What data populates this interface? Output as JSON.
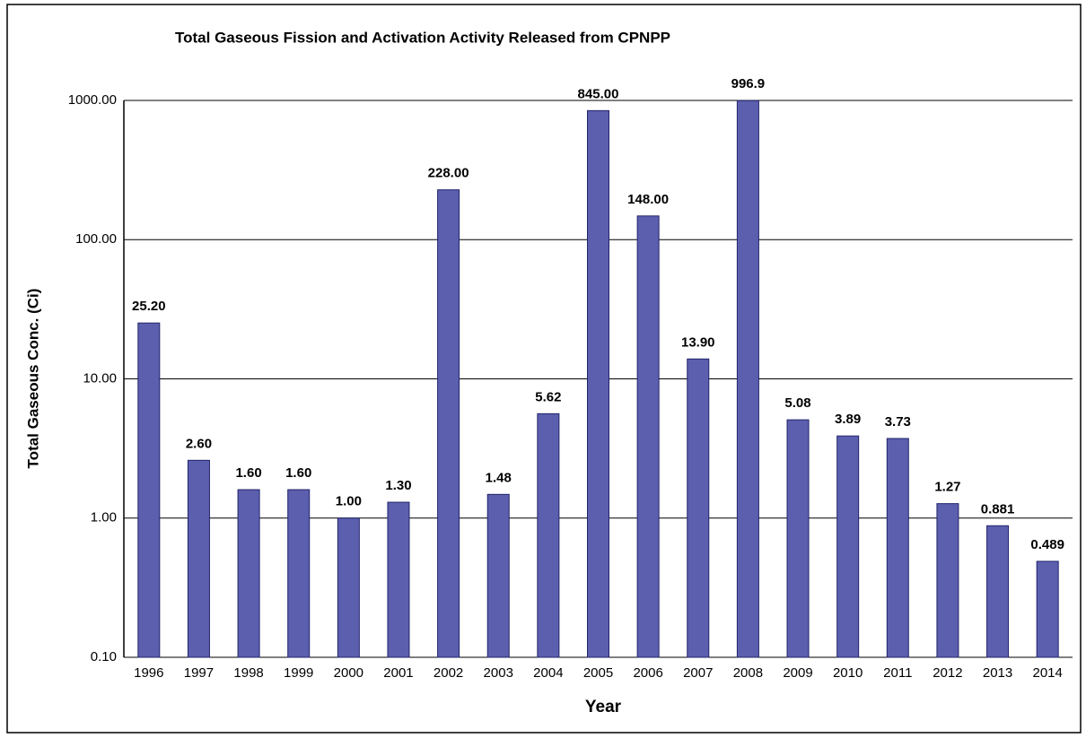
{
  "chart_data": {
    "type": "bar",
    "title": "Total Gaseous Fission and Activation Activity Released from CPNPP",
    "x_label": "Year",
    "y_label": "Total Gaseous Conc. (Ci)",
    "categories": [
      "1996",
      "1997",
      "1998",
      "1999",
      "2000",
      "2001",
      "2002",
      "2003",
      "2004",
      "2005",
      "2006",
      "2007",
      "2008",
      "2009",
      "2010",
      "2011",
      "2012",
      "2013",
      "2014"
    ],
    "values": [
      25.2,
      2.6,
      1.6,
      1.6,
      1.0,
      1.3,
      228,
      1.48,
      5.62,
      845,
      148,
      13.9,
      996.9,
      5.08,
      3.89,
      3.73,
      1.27,
      0.881,
      0.489
    ],
    "value_labels": [
      "25.20",
      "2.60",
      "1.60",
      "1.60",
      "1.00",
      "1.30",
      "228.00",
      "1.48",
      "5.62",
      "845.00",
      "148.00",
      "13.90",
      "996.9",
      "5.08",
      "3.89",
      "3.73",
      "1.27",
      "0.881",
      "0.489"
    ],
    "color": "#5b5fae",
    "log_scale": true,
    "ylim": [
      0.1,
      1000
    ],
    "yticks": [
      {
        "value": 0.1,
        "label": "0.10"
      },
      {
        "value": 1,
        "label": "1.00"
      },
      {
        "value": 10,
        "label": "10.00"
      },
      {
        "value": 100,
        "label": "100.00"
      },
      {
        "value": 1000,
        "label": "1000.00"
      }
    ],
    "grid": true
  }
}
